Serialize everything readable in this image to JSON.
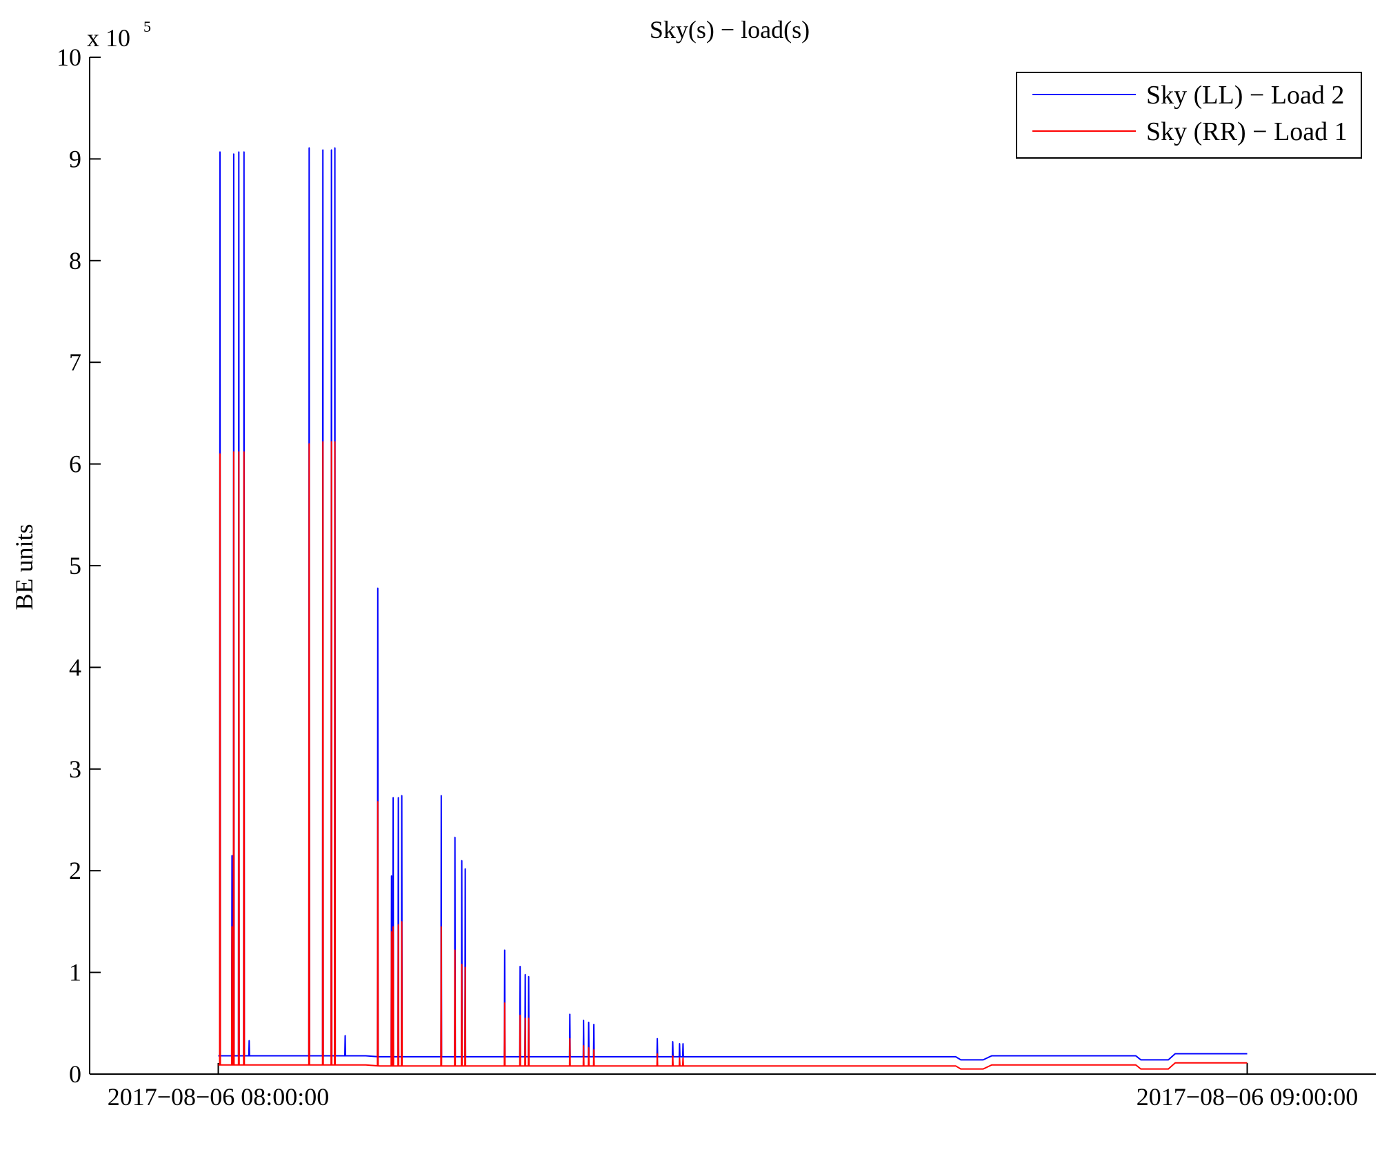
{
  "chart_data": {
    "type": "line",
    "title": "Sky(s) − load(s)",
    "xlabel": "",
    "ylabel": "BE units",
    "y_exponent_label": "x 10",
    "y_exponent": "5",
    "ylim": [
      0,
      1000000
    ],
    "y_ticks": [
      0,
      100000,
      200000,
      300000,
      400000,
      500000,
      600000,
      700000,
      800000,
      900000,
      1000000
    ],
    "y_tick_labels": [
      "0",
      "1",
      "2",
      "3",
      "4",
      "5",
      "6",
      "7",
      "8",
      "9",
      "10"
    ],
    "x_unit": "minutes after 2017-08-06 08:00:00",
    "xlim": [
      -7.5,
      67.5
    ],
    "x_ticks": [
      0,
      60
    ],
    "x_tick_labels": [
      "2017−08−06 08:00:00",
      "2017−08−06 09:00:00"
    ],
    "grid": false,
    "legend_position": "top-right",
    "legend": [
      "Sky (LL) − Load 2",
      "Sky (RR) − Load 1"
    ],
    "series": [
      {
        "name": "Sky (LL) − Load 2",
        "color": "#0000ff",
        "baseline": [
          [
            0,
            18000
          ],
          [
            8.6,
            18000
          ],
          [
            9.4,
            17000
          ],
          [
            43,
            17000
          ],
          [
            43.3,
            14000
          ],
          [
            44.6,
            14000
          ],
          [
            45.1,
            18000
          ],
          [
            53.5,
            18000
          ],
          [
            53.8,
            14000
          ],
          [
            55.4,
            14000
          ],
          [
            55.8,
            20000
          ],
          [
            60,
            20000
          ]
        ],
        "spikes": [
          [
            0.1,
            907000
          ],
          [
            0.8,
            215000
          ],
          [
            0.9,
            905000
          ],
          [
            1.2,
            907000
          ],
          [
            1.5,
            907000
          ],
          [
            1.8,
            33000
          ],
          [
            5.3,
            911000
          ],
          [
            6.1,
            909000
          ],
          [
            6.6,
            909000
          ],
          [
            6.8,
            911000
          ],
          [
            7.4,
            38000
          ],
          [
            9.3,
            478000
          ],
          [
            10.1,
            195000
          ],
          [
            10.2,
            272000
          ],
          [
            10.5,
            272000
          ],
          [
            10.7,
            274000
          ],
          [
            13.0,
            274000
          ],
          [
            13.8,
            233000
          ],
          [
            14.2,
            210000
          ],
          [
            14.4,
            202000
          ],
          [
            16.7,
            122000
          ],
          [
            17.6,
            106000
          ],
          [
            17.9,
            98000
          ],
          [
            18.1,
            96000
          ],
          [
            20.5,
            59000
          ],
          [
            21.3,
            53000
          ],
          [
            21.6,
            51000
          ],
          [
            21.9,
            49000
          ],
          [
            25.6,
            35000
          ],
          [
            26.5,
            32000
          ],
          [
            26.9,
            30000
          ],
          [
            27.1,
            30000
          ]
        ]
      },
      {
        "name": "Sky (RR) − Load 1",
        "color": "#ff0000",
        "baseline": [
          [
            0,
            9000
          ],
          [
            8.6,
            9000
          ],
          [
            9.4,
            8000
          ],
          [
            43,
            8000
          ],
          [
            43.3,
            5000
          ],
          [
            44.6,
            5000
          ],
          [
            45.1,
            9000
          ],
          [
            53.5,
            9000
          ],
          [
            53.8,
            5000
          ],
          [
            55.4,
            5000
          ],
          [
            55.8,
            11000
          ],
          [
            60,
            11000
          ]
        ],
        "spikes": [
          [
            0.1,
            610000
          ],
          [
            0.8,
            145000
          ],
          [
            0.9,
            612000
          ],
          [
            1.2,
            612000
          ],
          [
            1.5,
            612000
          ],
          [
            5.3,
            620000
          ],
          [
            6.1,
            622000
          ],
          [
            6.6,
            622000
          ],
          [
            6.8,
            622000
          ],
          [
            9.3,
            268000
          ],
          [
            10.1,
            140000
          ],
          [
            10.2,
            145000
          ],
          [
            10.5,
            147000
          ],
          [
            10.7,
            150000
          ],
          [
            13.0,
            145000
          ],
          [
            13.8,
            122000
          ],
          [
            14.2,
            108000
          ],
          [
            14.4,
            105000
          ],
          [
            16.7,
            70000
          ],
          [
            17.6,
            58000
          ],
          [
            17.9,
            55000
          ],
          [
            18.1,
            55000
          ],
          [
            20.5,
            35000
          ],
          [
            21.3,
            28000
          ],
          [
            21.6,
            26000
          ],
          [
            21.9,
            24000
          ],
          [
            25.6,
            20000
          ],
          [
            26.5,
            18000
          ],
          [
            26.9,
            16000
          ],
          [
            27.1,
            16000
          ]
        ]
      }
    ]
  }
}
